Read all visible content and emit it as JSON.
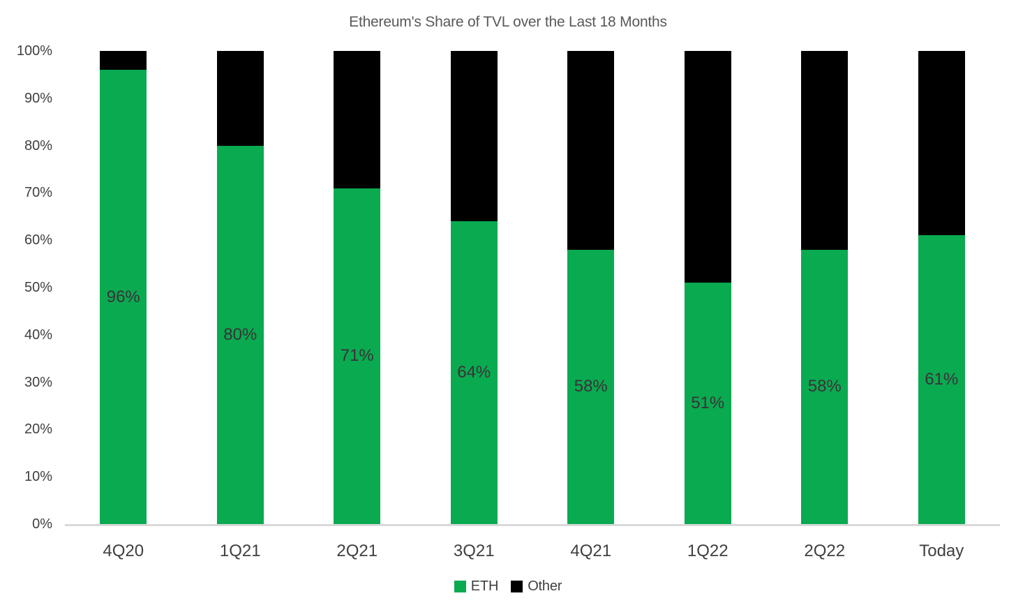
{
  "chart_data": {
    "type": "bar",
    "variant": "stacked-column",
    "title": "Ethereum's Share of TVL over the Last 18 Months",
    "categories": [
      "4Q20",
      "1Q21",
      "2Q21",
      "3Q21",
      "4Q21",
      "1Q22",
      "2Q22",
      "Today"
    ],
    "series": [
      {
        "name": "ETH",
        "color": "#0aaa50",
        "values": [
          96,
          80,
          71,
          64,
          58,
          51,
          58,
          61
        ],
        "data_labels": [
          "96%",
          "80%",
          "71%",
          "64%",
          "58%",
          "51%",
          "58%",
          "61%"
        ]
      },
      {
        "name": "Other",
        "color": "#000000",
        "values": [
          4,
          20,
          29,
          36,
          42,
          49,
          42,
          39
        ],
        "data_labels": []
      }
    ],
    "xlabel": "",
    "ylabel": "",
    "ylim": [
      0,
      100
    ],
    "ytick_values": [
      0,
      10,
      20,
      30,
      40,
      50,
      60,
      70,
      80,
      90,
      100
    ],
    "ytick_labels": [
      "0%",
      "10%",
      "20%",
      "30%",
      "40%",
      "50%",
      "60%",
      "70%",
      "80%",
      "90%",
      "100%"
    ],
    "grid": false,
    "legend_position": "bottom",
    "colors": {
      "background": "#ffffff",
      "axis_line": "#d9d9d9",
      "tick_label_text": "#404040",
      "title_text": "#595959",
      "data_label_text": "#3b3138",
      "legend_text": "#404040"
    }
  }
}
